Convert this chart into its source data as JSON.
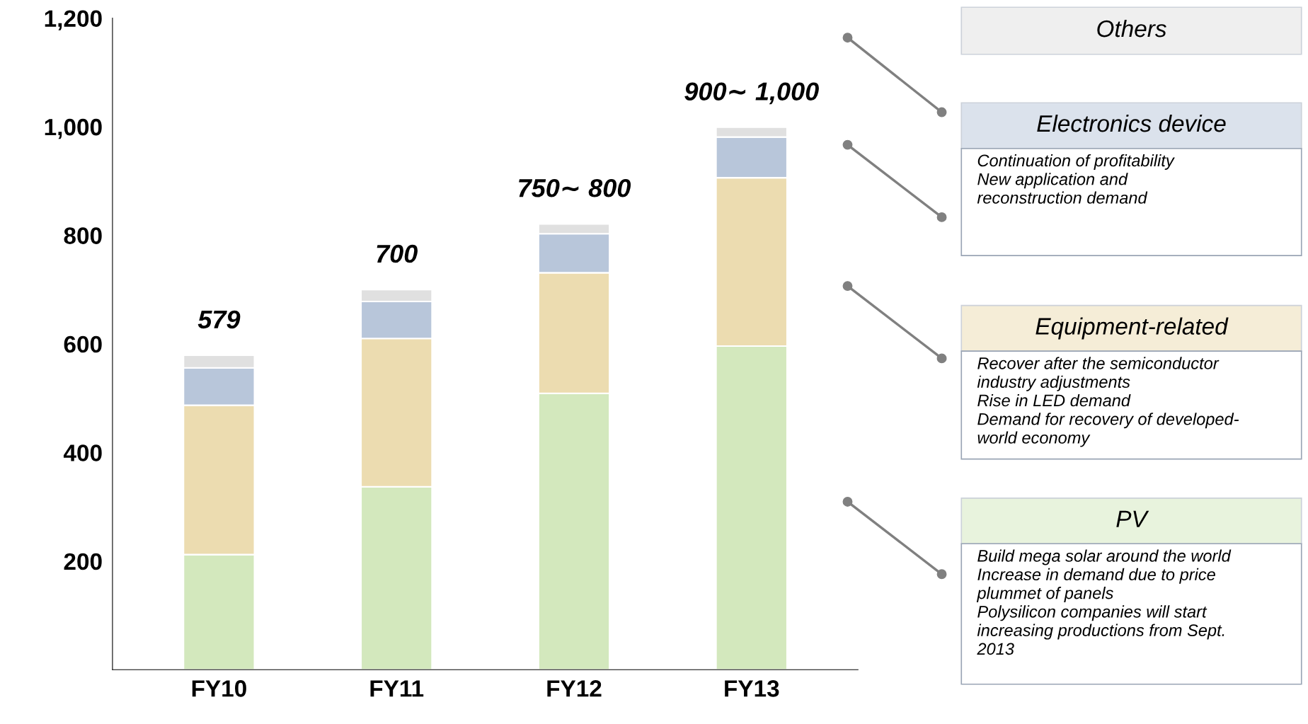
{
  "chart_data": {
    "type": "bar",
    "stacked": true,
    "categories": [
      "FY10",
      "FY11",
      "FY12",
      "FY13"
    ],
    "series": [
      {
        "name": "PV",
        "color": "#d3e8bd",
        "values": [
          212,
          337,
          509,
          596
        ]
      },
      {
        "name": "Equipment-related",
        "color": "#ecdcb0",
        "values": [
          275,
          273,
          222,
          310
        ]
      },
      {
        "name": "Electronics device",
        "color": "#b8c6da",
        "values": [
          69,
          68,
          72,
          75
        ]
      },
      {
        "name": "Others",
        "color": "#e0e0e0",
        "values": [
          23,
          22,
          18,
          18
        ]
      }
    ],
    "totals": [
      "579",
      "700",
      "750∼ 800",
      "900∼ 1,000"
    ],
    "ylim": [
      0,
      1200
    ],
    "yticks": [
      200,
      400,
      600,
      800,
      {
        "value": 1000,
        "label": "1,000"
      },
      {
        "value": 1200,
        "label": "1,200"
      }
    ],
    "legend": "right",
    "grid": false,
    "annotations": [
      "Continuation of profitability\nNew application and\nreconstruction demand",
      "Recover after the semiconductor\nindustry adjustments\nRise in LED demand\nDemand for recovery of developed-\nworld economy",
      "Build mega solar around the world\nIncrease in demand due to price\nplummet of panels\nPolysilicon companies will start\nincreasing productions from Sept.\n2013"
    ]
  }
}
